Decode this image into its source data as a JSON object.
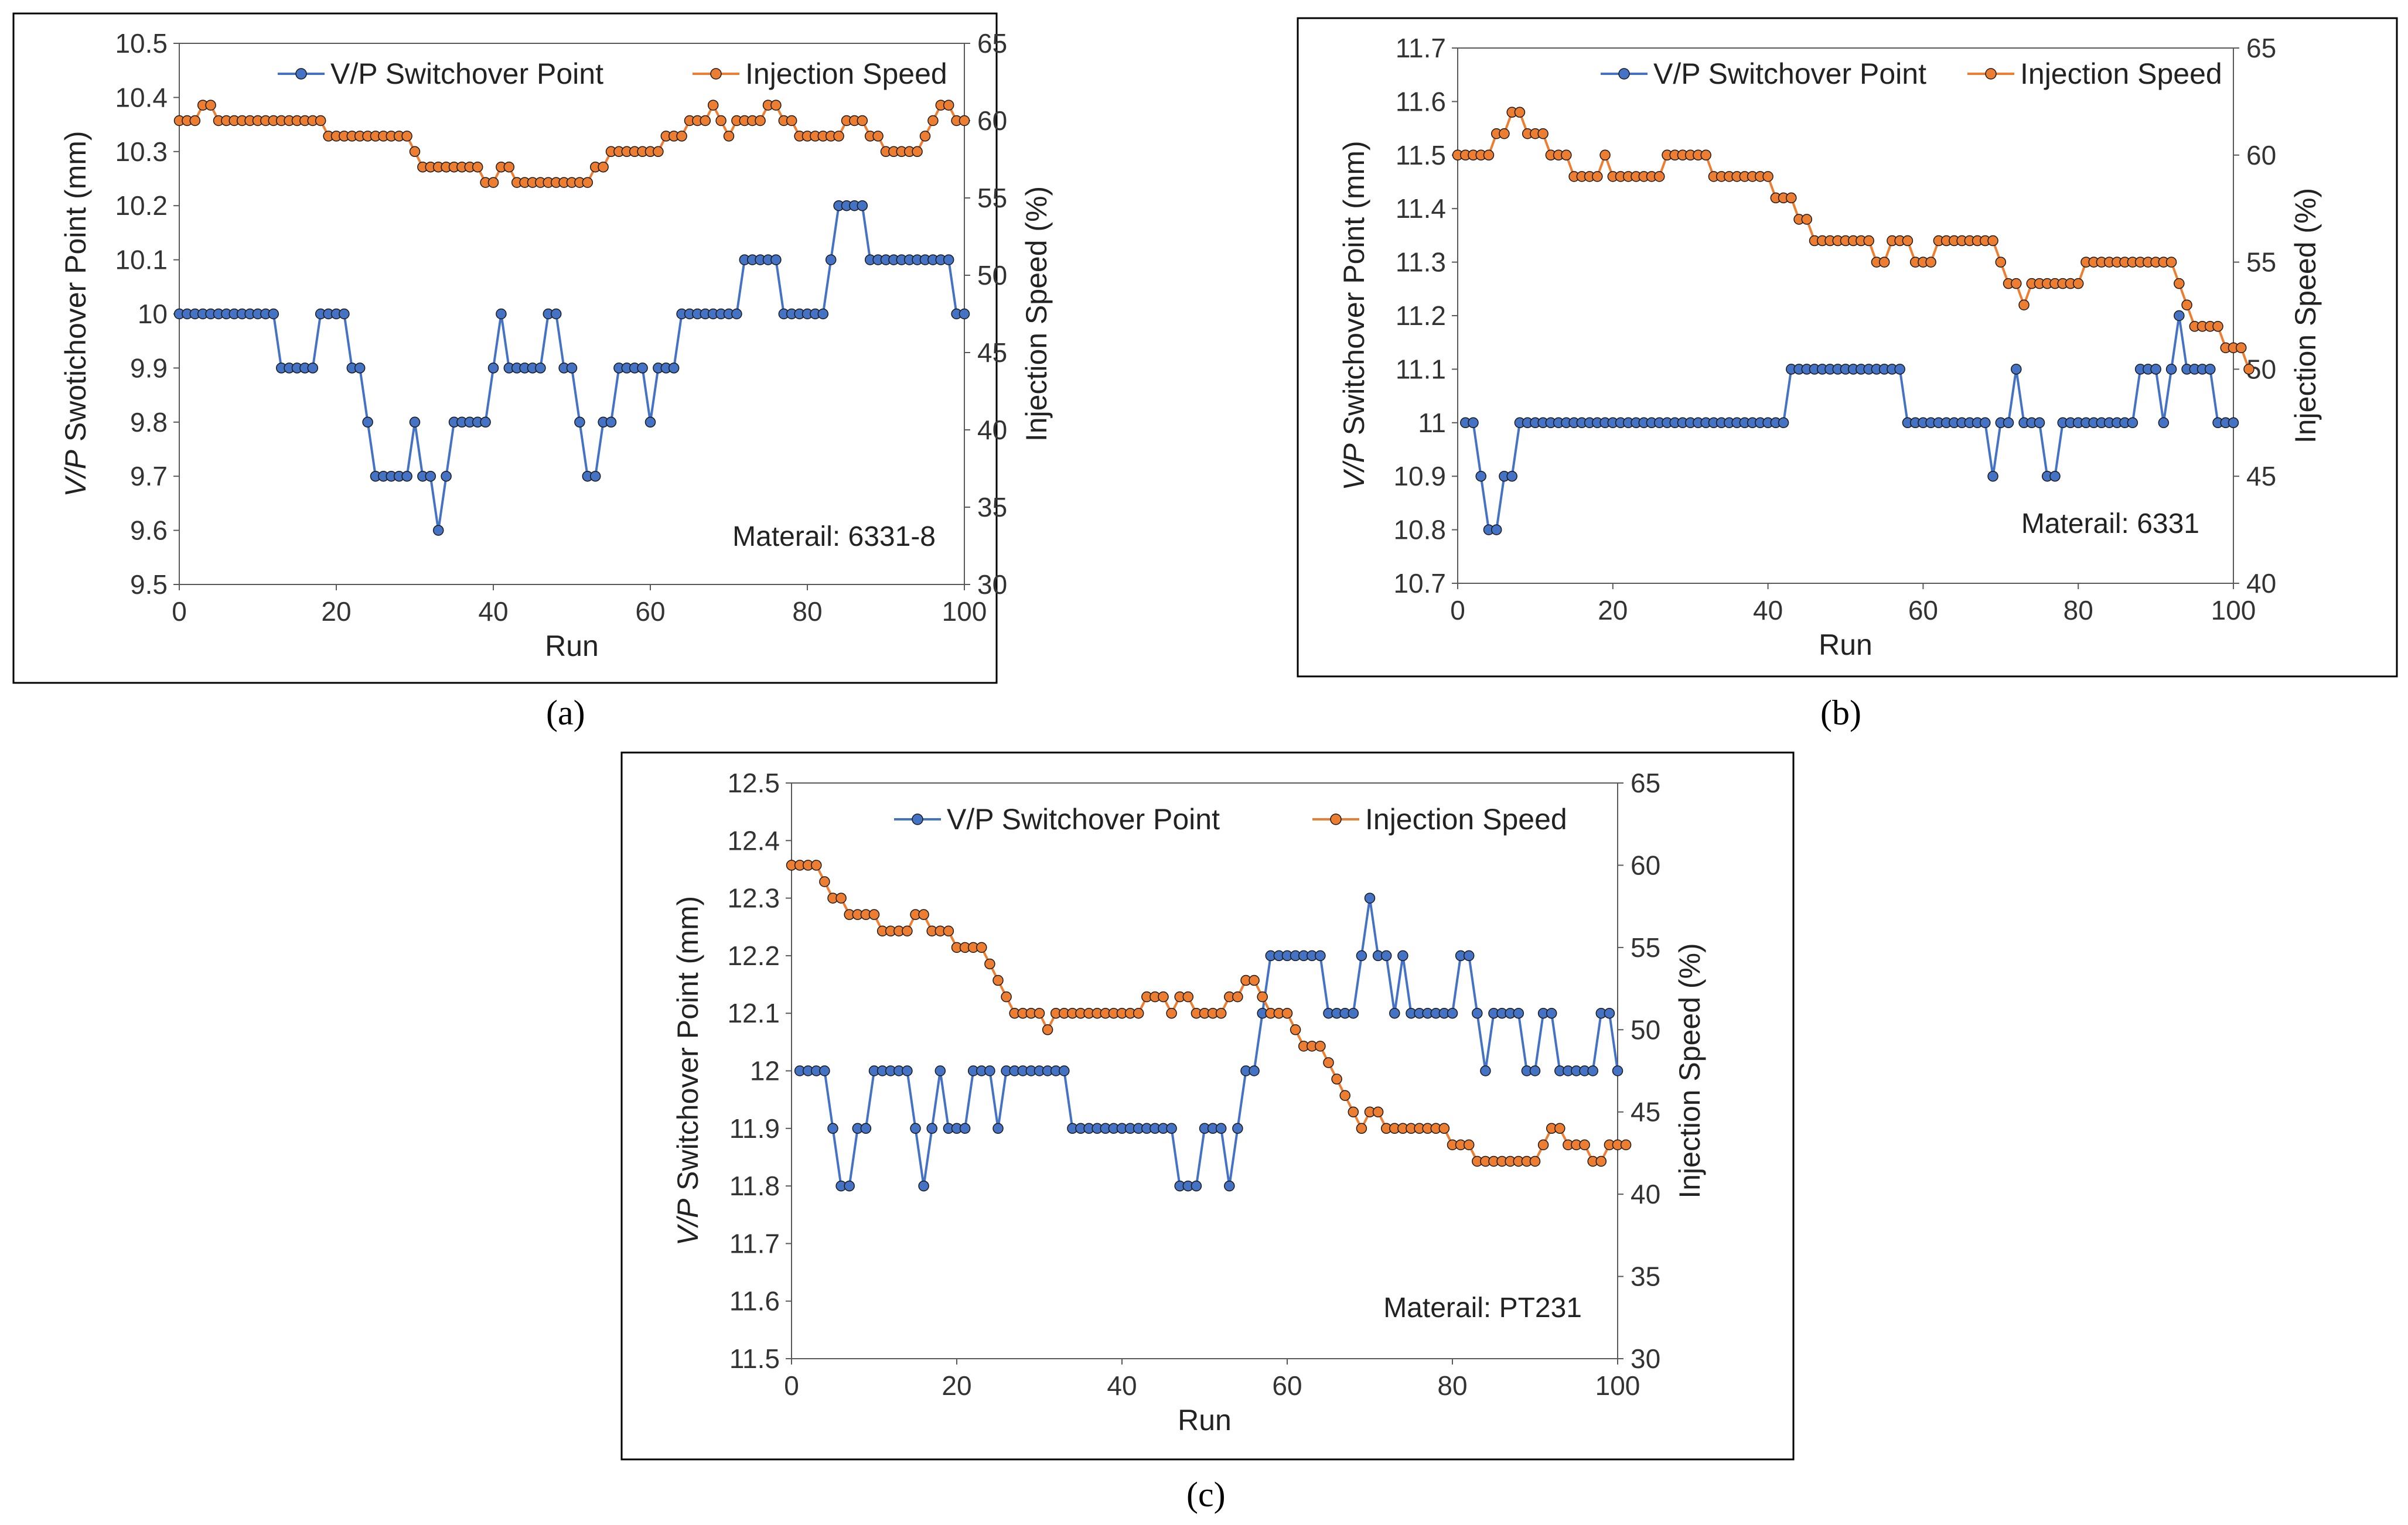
{
  "colors": {
    "vp": "#4472C4",
    "speed": "#ED7D31",
    "frame": "#000000"
  },
  "captions": [
    "(a)",
    "(b)",
    "(c)"
  ],
  "chart_data": [
    {
      "type": "line",
      "xlabel": "Run",
      "ylabel_italic": "V/P",
      "ylabel_rest": " Swotichover Point (mm)",
      "y2label": "Injection Speed (%)",
      "xlim": [
        0,
        100
      ],
      "xticks": [
        0,
        20,
        40,
        60,
        80,
        100
      ],
      "ylim": [
        9.5,
        10.5
      ],
      "yticks": [
        9.5,
        9.6,
        9.7,
        9.8,
        9.9,
        10,
        10.1,
        10.2,
        10.3,
        10.4,
        10.5
      ],
      "ytick_labels": [
        "9.5",
        "9.6",
        "9.7",
        "9.8",
        "9.9",
        "10",
        "10.1",
        "10.2",
        "10.3",
        "10.4",
        "10.5"
      ],
      "y2lim": [
        30,
        65
      ],
      "y2ticks": [
        30,
        35,
        40,
        45,
        50,
        55,
        60,
        65
      ],
      "annotation": "Materail: 6331-8",
      "legend": [
        "V/P Switchover Point",
        "Injection Speed"
      ],
      "series": [
        {
          "name": "V/P Switchover Point",
          "axis": "left",
          "values": [
            10.0,
            10.0,
            10.0,
            10.0,
            10.0,
            10.0,
            10.0,
            10.0,
            10.0,
            10.0,
            10.0,
            10.0,
            10.0,
            9.9,
            9.9,
            9.9,
            9.9,
            9.9,
            10.0,
            10.0,
            10.0,
            10.0,
            9.9,
            9.9,
            9.8,
            9.7,
            9.7,
            9.7,
            9.7,
            9.7,
            9.8,
            9.7,
            9.7,
            9.6,
            9.7,
            9.8,
            9.8,
            9.8,
            9.8,
            9.8,
            9.9,
            10.0,
            9.9,
            9.9,
            9.9,
            9.9,
            9.9,
            10.0,
            10.0,
            9.9,
            9.9,
            9.8,
            9.7,
            9.7,
            9.8,
            9.8,
            9.9,
            9.9,
            9.9,
            9.9,
            9.8,
            9.9,
            9.9,
            9.9,
            10.0,
            10.0,
            10.0,
            10.0,
            10.0,
            10.0,
            10.0,
            10.0,
            10.1,
            10.1,
            10.1,
            10.1,
            10.1,
            10.0,
            10.0,
            10.0,
            10.0,
            10.0,
            10.0,
            10.1,
            10.2,
            10.2,
            10.2,
            10.2,
            10.1,
            10.1,
            10.1,
            10.1,
            10.1,
            10.1,
            10.1,
            10.1,
            10.1,
            10.1,
            10.1,
            10.0,
            10.0
          ]
        },
        {
          "name": "Injection Speed",
          "axis": "right",
          "values": [
            60,
            60,
            60,
            61,
            61,
            60,
            60,
            60,
            60,
            60,
            60,
            60,
            60,
            60,
            60,
            60,
            60,
            60,
            60,
            59,
            59,
            59,
            59,
            59,
            59,
            59,
            59,
            59,
            59,
            59,
            58,
            57,
            57,
            57,
            57,
            57,
            57,
            57,
            57,
            56,
            56,
            57,
            57,
            56,
            56,
            56,
            56,
            56,
            56,
            56,
            56,
            56,
            56,
            57,
            57,
            58,
            58,
            58,
            58,
            58,
            58,
            58,
            59,
            59,
            59,
            60,
            60,
            60,
            61,
            60,
            59,
            60,
            60,
            60,
            60,
            61,
            61,
            60,
            60,
            59,
            59,
            59,
            59,
            59,
            59,
            60,
            60,
            60,
            59,
            59,
            58,
            58,
            58,
            58,
            58,
            59,
            60,
            61,
            61,
            60,
            60
          ]
        }
      ]
    },
    {
      "type": "line",
      "xlabel": "Run",
      "ylabel_italic": "V/P",
      "ylabel_rest": " Switchover Point (mm)",
      "y2label": "Injection Speed (%)",
      "xlim": [
        0,
        100
      ],
      "xticks": [
        0,
        20,
        40,
        60,
        80,
        100
      ],
      "ylim": [
        10.7,
        11.7
      ],
      "yticks": [
        10.7,
        10.8,
        10.9,
        11,
        11.1,
        11.2,
        11.3,
        11.4,
        11.5,
        11.6,
        11.7
      ],
      "ytick_labels": [
        "10.7",
        "10.8",
        "10.9",
        "11",
        "11.1",
        "11.2",
        "11.3",
        "11.4",
        "11.5",
        "11.6",
        "11.7"
      ],
      "y2lim": [
        40,
        65
      ],
      "y2ticks": [
        40,
        45,
        50,
        55,
        60,
        65
      ],
      "annotation": "Materail: 6331",
      "legend": [
        "V/P Switchover Point",
        "Injection Speed"
      ],
      "series": [
        {
          "name": "V/P Switchover Point",
          "axis": "left",
          "values": [
            null,
            11.0,
            11.0,
            10.9,
            10.8,
            10.8,
            10.9,
            10.9,
            11.0,
            11.0,
            11.0,
            11.0,
            11.0,
            11.0,
            11.0,
            11.0,
            11.0,
            11.0,
            11.0,
            11.0,
            11.0,
            11.0,
            11.0,
            11.0,
            11.0,
            11.0,
            11.0,
            11.0,
            11.0,
            11.0,
            11.0,
            11.0,
            11.0,
            11.0,
            11.0,
            11.0,
            11.0,
            11.0,
            11.0,
            11.0,
            11.0,
            11.0,
            11.0,
            11.1,
            11.1,
            11.1,
            11.1,
            11.1,
            11.1,
            11.1,
            11.1,
            11.1,
            11.1,
            11.1,
            11.1,
            11.1,
            11.1,
            11.1,
            11.0,
            11.0,
            11.0,
            11.0,
            11.0,
            11.0,
            11.0,
            11.0,
            11.0,
            11.0,
            11.0,
            10.9,
            11.0,
            11.0,
            11.1,
            11.0,
            11.0,
            11.0,
            10.9,
            10.9,
            11.0,
            11.0,
            11.0,
            11.0,
            11.0,
            11.0,
            11.0,
            11.0,
            11.0,
            11.0,
            11.1,
            11.1,
            11.1,
            11.0,
            11.1,
            11.2,
            11.1,
            11.1,
            11.1,
            11.1,
            11.0,
            11.0,
            11.0
          ]
        },
        {
          "name": "Injection Speed",
          "axis": "right",
          "values": [
            60,
            60,
            60,
            60,
            60,
            61,
            61,
            62,
            62,
            61,
            61,
            61,
            60,
            60,
            60,
            59,
            59,
            59,
            59,
            60,
            59,
            59,
            59,
            59,
            59,
            59,
            59,
            60,
            60,
            60,
            60,
            60,
            60,
            59,
            59,
            59,
            59,
            59,
            59,
            59,
            59,
            58,
            58,
            58,
            57,
            57,
            56,
            56,
            56,
            56,
            56,
            56,
            56,
            56,
            55,
            55,
            56,
            56,
            56,
            55,
            55,
            55,
            56,
            56,
            56,
            56,
            56,
            56,
            56,
            56,
            55,
            54,
            54,
            53,
            54,
            54,
            54,
            54,
            54,
            54,
            54,
            55,
            55,
            55,
            55,
            55,
            55,
            55,
            55,
            55,
            55,
            55,
            55,
            54,
            53,
            52,
            52,
            52,
            52,
            51,
            51,
            51,
            50
          ]
        }
      ]
    },
    {
      "type": "line",
      "xlabel": "Run",
      "ylabel_italic": "V/P",
      "ylabel_rest": " Switchover Point (mm)",
      "y2label": "Injection Speed (%)",
      "xlim": [
        0,
        100
      ],
      "xticks": [
        0,
        20,
        40,
        60,
        80,
        100
      ],
      "ylim": [
        11.5,
        12.5
      ],
      "yticks": [
        11.5,
        11.6,
        11.7,
        11.8,
        11.9,
        12,
        12.1,
        12.2,
        12.3,
        12.4,
        12.5
      ],
      "ytick_labels": [
        "11.5",
        "11.6",
        "11.7",
        "11.8",
        "11.9",
        "12",
        "12.1",
        "12.2",
        "12.3",
        "12.4",
        "12.5"
      ],
      "y2lim": [
        30,
        65
      ],
      "y2ticks": [
        30,
        35,
        40,
        45,
        50,
        55,
        60,
        65
      ],
      "annotation": "Materail: PT231",
      "legend": [
        "V/P Switchover Point",
        "Injection Speed"
      ],
      "series": [
        {
          "name": "V/P Switchover Point",
          "axis": "left",
          "values": [
            null,
            12.0,
            12.0,
            12.0,
            12.0,
            11.9,
            11.8,
            11.8,
            11.9,
            11.9,
            12.0,
            12.0,
            12.0,
            12.0,
            12.0,
            11.9,
            11.8,
            11.9,
            12.0,
            11.9,
            11.9,
            11.9,
            12.0,
            12.0,
            12.0,
            11.9,
            12.0,
            12.0,
            12.0,
            12.0,
            12.0,
            12.0,
            12.0,
            12.0,
            11.9,
            11.9,
            11.9,
            11.9,
            11.9,
            11.9,
            11.9,
            11.9,
            11.9,
            11.9,
            11.9,
            11.9,
            11.9,
            11.8,
            11.8,
            11.8,
            11.9,
            11.9,
            11.9,
            11.8,
            11.9,
            12.0,
            12.0,
            12.1,
            12.2,
            12.2,
            12.2,
            12.2,
            12.2,
            12.2,
            12.2,
            12.1,
            12.1,
            12.1,
            12.1,
            12.2,
            12.3,
            12.2,
            12.2,
            12.1,
            12.2,
            12.1,
            12.1,
            12.1,
            12.1,
            12.1,
            12.1,
            12.2,
            12.2,
            12.1,
            12.0,
            12.1,
            12.1,
            12.1,
            12.1,
            12.0,
            12.0,
            12.1,
            12.1,
            12.0,
            12.0,
            12.0,
            12.0,
            12.0,
            12.1,
            12.1,
            12.0
          ]
        },
        {
          "name": "Injection Speed",
          "axis": "right",
          "values": [
            60,
            60,
            60,
            60,
            59,
            58,
            58,
            57,
            57,
            57,
            57,
            56,
            56,
            56,
            56,
            57,
            57,
            56,
            56,
            56,
            55,
            55,
            55,
            55,
            54,
            53,
            52,
            51,
            51,
            51,
            51,
            50,
            51,
            51,
            51,
            51,
            51,
            51,
            51,
            51,
            51,
            51,
            51,
            52,
            52,
            52,
            51,
            52,
            52,
            51,
            51,
            51,
            51,
            52,
            52,
            53,
            53,
            52,
            51,
            51,
            51,
            50,
            49,
            49,
            49,
            48,
            47,
            46,
            45,
            44,
            45,
            45,
            44,
            44,
            44,
            44,
            44,
            44,
            44,
            44,
            43,
            43,
            43,
            42,
            42,
            42,
            42,
            42,
            42,
            42,
            42,
            43,
            44,
            44,
            43,
            43,
            43,
            42,
            42,
            43,
            43,
            43
          ]
        }
      ]
    }
  ]
}
